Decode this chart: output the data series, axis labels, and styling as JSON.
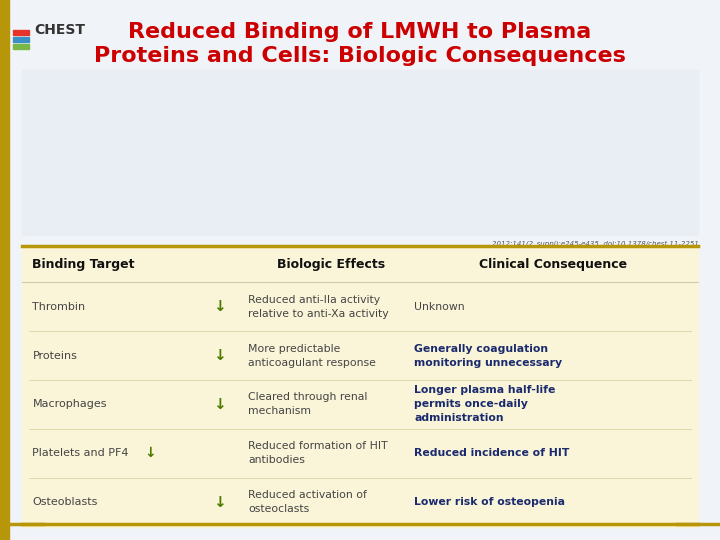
{
  "title_line1": "Reduced Binding of LMWH to Plasma",
  "title_line2": "Proteins and Cells: Biologic Consequences",
  "title_color": "#cc0000",
  "bg_color": "#f0f4f8",
  "table_bg_color": "#faf5d8",
  "header_row": [
    "Binding Target",
    "Biologic Effects",
    "Clinical Consequence"
  ],
  "rows": [
    {
      "target": "Thrombin",
      "has_inline_arrow": false,
      "effects": "Reduced anti-IIa activity\nrelative to anti-Xa activity",
      "consequence": "Unknown",
      "consequence_bold": false
    },
    {
      "target": "Proteins",
      "has_inline_arrow": false,
      "effects": "More predictable\nanticoagulant response",
      "consequence": "Generally coagulation\nmonitoring unnecessary",
      "consequence_bold": true
    },
    {
      "target": "Macrophages",
      "has_inline_arrow": false,
      "effects": "Cleared through renal\nmechanism",
      "consequence": "Longer plasma half-life\npermits once-daily\nadministration",
      "consequence_bold": true
    },
    {
      "target": "Platelets and PF4",
      "has_inline_arrow": true,
      "effects": "Reduced formation of HIT\nantibodies",
      "consequence": "Reduced incidence of HIT",
      "consequence_bold": true
    },
    {
      "target": "Osteoblasts",
      "has_inline_arrow": false,
      "effects": "Reduced activation of\nosteoclasts",
      "consequence": "Lower risk of osteopenia",
      "consequence_bold": true
    }
  ],
  "citation": "2012;141(2_suppl):e245-e435. doi:10.1378/chest.11-2251",
  "arrow_color": "#4a7a00",
  "header_text_color": "#111111",
  "row_text_color": "#444444",
  "bold_consequence_color": "#1a2a6e",
  "border_color": "#b8960a",
  "side_bar_color": "#b8960a",
  "image_bg": "#e8eef4",
  "chest_bar_color": "#b8960a"
}
